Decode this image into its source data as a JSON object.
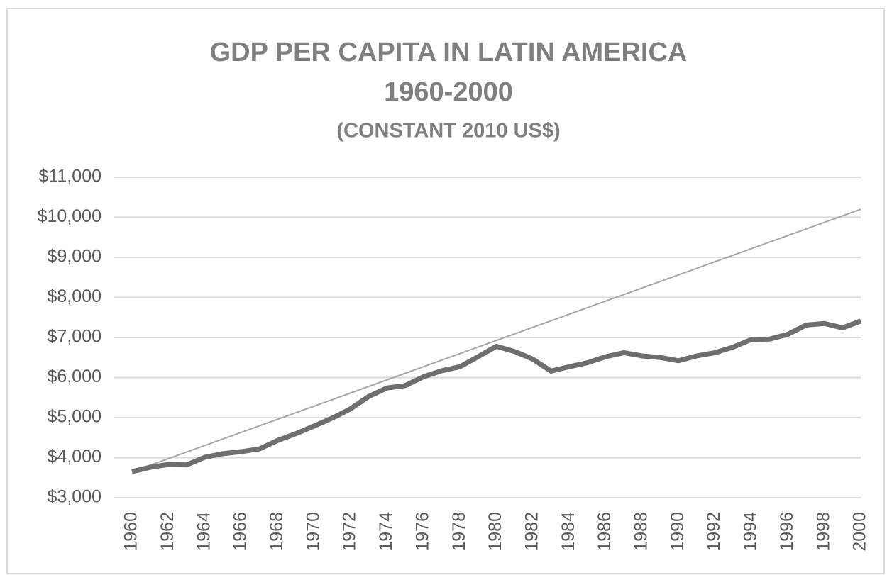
{
  "chart_data": {
    "type": "line",
    "title": [
      "GDP PER CAPITA IN LATIN AMERICA",
      "1960-2000"
    ],
    "subtitle": "(CONSTANT 2010 US$)",
    "x": [
      1960,
      1961,
      1962,
      1963,
      1964,
      1965,
      1966,
      1967,
      1968,
      1969,
      1970,
      1971,
      1972,
      1973,
      1974,
      1975,
      1976,
      1977,
      1978,
      1979,
      1980,
      1981,
      1982,
      1983,
      1984,
      1985,
      1986,
      1987,
      1988,
      1989,
      1990,
      1991,
      1992,
      1993,
      1994,
      1995,
      1996,
      1997,
      1998,
      1999,
      2000
    ],
    "series": [
      {
        "color": "#6e6e6e",
        "width": 7,
        "values": [
          3650,
          3760,
          3830,
          3820,
          4010,
          4100,
          4150,
          4220,
          4430,
          4600,
          4790,
          4990,
          5220,
          5530,
          5740,
          5800,
          6020,
          6170,
          6270,
          6520,
          6780,
          6650,
          6460,
          6160,
          6270,
          6370,
          6520,
          6620,
          6540,
          6500,
          6420,
          6540,
          6620,
          6760,
          6950,
          6960,
          7080,
          7310,
          7350,
          7240,
          7410
        ]
      },
      {
        "color": "#a6a6a6",
        "width": 2,
        "values": [
          3650,
          3813.75,
          3977.5,
          4141.25,
          4305,
          4468.75,
          4632.5,
          4796.25,
          4960,
          5123.75,
          5287.5,
          5451.25,
          5615,
          5778.75,
          5942.5,
          6106.25,
          6270,
          6433.75,
          6597.5,
          6761.25,
          6925,
          7088.75,
          7252.5,
          7416.25,
          7580,
          7743.75,
          7907.5,
          8071.25,
          8235,
          8398.75,
          8562.5,
          8726.25,
          8890,
          9053.75,
          9217.5,
          9381.25,
          9545,
          9708.75,
          9872.5,
          10036.25,
          10200
        ]
      }
    ],
    "xlim": [
      1960,
      2000
    ],
    "xticks": [
      1960,
      1962,
      1964,
      1966,
      1968,
      1970,
      1972,
      1974,
      1976,
      1978,
      1980,
      1982,
      1984,
      1986,
      1988,
      1990,
      1992,
      1994,
      1996,
      1998,
      2000
    ],
    "ylim": [
      3000,
      11000
    ],
    "yticks": [
      {
        "value": 3000,
        "label": "$3,000"
      },
      {
        "value": 4000,
        "label": "$4,000"
      },
      {
        "value": 5000,
        "label": "$5,000"
      },
      {
        "value": 6000,
        "label": "$6,000"
      },
      {
        "value": 7000,
        "label": "$7,000"
      },
      {
        "value": 8000,
        "label": "$8,000"
      },
      {
        "value": 9000,
        "label": "$9,000"
      },
      {
        "value": 10000,
        "label": "$10,000"
      },
      {
        "value": 11000,
        "label": "$11,000"
      }
    ],
    "grid": true
  }
}
